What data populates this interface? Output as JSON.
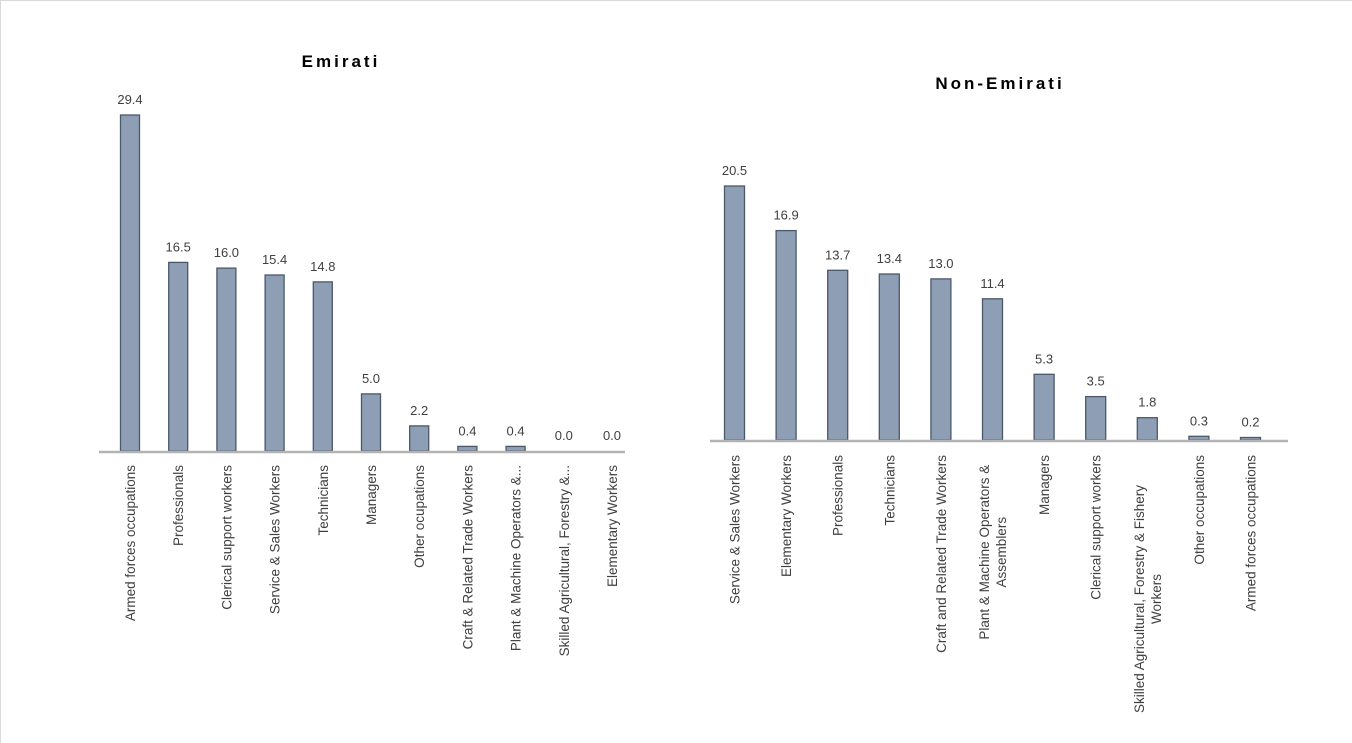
{
  "colors": {
    "bar_fill": "#8e9fb5",
    "bar_stroke": "#4a5868",
    "axis": "#b3b3b3",
    "label_text": "#404040"
  },
  "chart_data": [
    {
      "type": "bar",
      "title": "Emirati",
      "categories": [
        "Armed forces occupations",
        "Professionals",
        "Clerical support workers",
        "Service & Sales Workers",
        "Technicians",
        "Managers",
        "Other ocupations",
        "Craft & Related Trade Workers",
        "Plant & Machine Operators &...",
        "Skilled Agricultural, Forestry &...",
        "Elementary Workers"
      ],
      "values": [
        29.4,
        16.5,
        16.0,
        15.4,
        14.8,
        5.0,
        2.2,
        0.4,
        0.4,
        0.0,
        0.0
      ],
      "value_labels": [
        "29.4",
        "16.5",
        "16.0",
        "15.4",
        "14.8",
        "5.0",
        "2.2",
        "0.4",
        "0.4",
        "0.0",
        "0.0"
      ],
      "ylim": [
        0,
        29.4
      ],
      "grid": false,
      "data_labels": true
    },
    {
      "type": "bar",
      "title": "Non-Emirati",
      "categories": [
        [
          "Service & Sales Workers"
        ],
        [
          "Elementary Workers"
        ],
        [
          "Professionals"
        ],
        [
          "Technicians"
        ],
        [
          "Craft and Related Trade Workers"
        ],
        [
          "Plant & Machine Operators &",
          "Assemblers"
        ],
        [
          "Managers"
        ],
        [
          "Clerical support workers"
        ],
        [
          "Skilled Agricultural, Forestry & Fishery",
          "Workers"
        ],
        [
          "Other occupations"
        ],
        [
          "Armed forces occupations"
        ]
      ],
      "values": [
        20.5,
        16.9,
        13.7,
        13.4,
        13.0,
        11.4,
        5.3,
        3.5,
        1.8,
        0.3,
        0.2
      ],
      "value_labels": [
        "20.5",
        "16.9",
        "13.7",
        "13.4",
        "13.0",
        "11.4",
        "5.3",
        "3.5",
        "1.8",
        "0.3",
        "0.2"
      ],
      "ylim": [
        0,
        20.5
      ],
      "grid": false,
      "data_labels": true
    }
  ]
}
